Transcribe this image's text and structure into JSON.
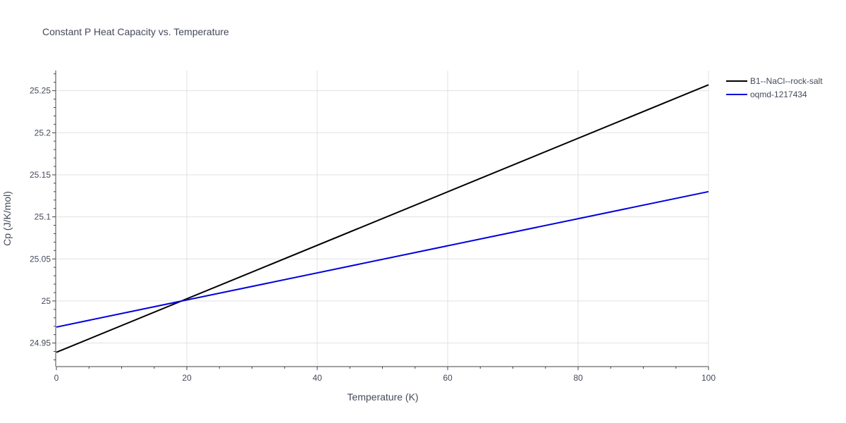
{
  "chart_data": {
    "type": "line",
    "title": "Constant P Heat Capacity vs. Temperature",
    "xlabel": "Temperature (K)",
    "ylabel": "Cp (J/K/mol)",
    "xlim": [
      0,
      100
    ],
    "ylim": [
      24.922,
      25.274
    ],
    "xticks": [
      0,
      20,
      40,
      60,
      80,
      100
    ],
    "xtick_labels": [
      "0",
      "20",
      "40",
      "60",
      "80",
      "100"
    ],
    "yticks": [
      24.95,
      25.0,
      25.05,
      25.1,
      25.15,
      25.2,
      25.25
    ],
    "ytick_labels": [
      "24.95",
      "25",
      "25.05",
      "25.1",
      "25.15",
      "25.2",
      "25.25"
    ],
    "grid": true,
    "legend_position": "top-right-outside",
    "series": [
      {
        "name": "B1--NaCl--rock-salt",
        "color": "#000000",
        "x": [
          0,
          100
        ],
        "y": [
          24.939,
          25.257
        ]
      },
      {
        "name": "oqmd-1217434",
        "color": "#0000dd",
        "x": [
          0,
          100
        ],
        "y": [
          24.969,
          25.13
        ]
      }
    ]
  }
}
